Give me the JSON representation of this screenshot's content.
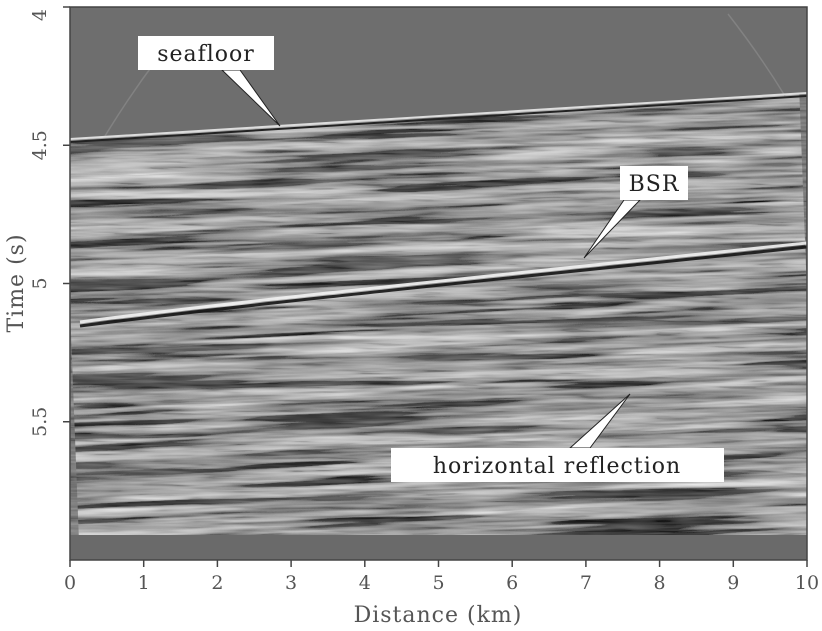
{
  "figure": {
    "xaxis": {
      "label": "Distance (km)",
      "range": [
        0,
        10
      ],
      "ticks": [
        0,
        1,
        2,
        3,
        4,
        5,
        6,
        7,
        8,
        9,
        10
      ],
      "tick_labels": [
        "0",
        "1",
        "2",
        "3",
        "4",
        "5",
        "6",
        "7",
        "8",
        "9",
        "10"
      ]
    },
    "yaxis": {
      "label": "Time (s)",
      "range": [
        4,
        6.0
      ],
      "inverted": true,
      "ticks": [
        4,
        4.5,
        5,
        5.5
      ],
      "tick_labels": [
        "4",
        "4.5",
        "5",
        "5.5"
      ]
    },
    "annotations": [
      {
        "text": "seafloor",
        "point_to": {
          "x_km": 2.85,
          "t_s": 4.43
        }
      },
      {
        "text": "BSR",
        "point_to": {
          "x_km": 7.0,
          "t_s": 4.92
        }
      },
      {
        "text": "horizontal reflection",
        "point_to": {
          "x_km": 7.6,
          "t_s": 5.38
        }
      }
    ],
    "colors": {
      "water": "#6a6a6a",
      "background_gray": "#7a7a7a",
      "frame": "#444444",
      "text": "#555555"
    }
  }
}
